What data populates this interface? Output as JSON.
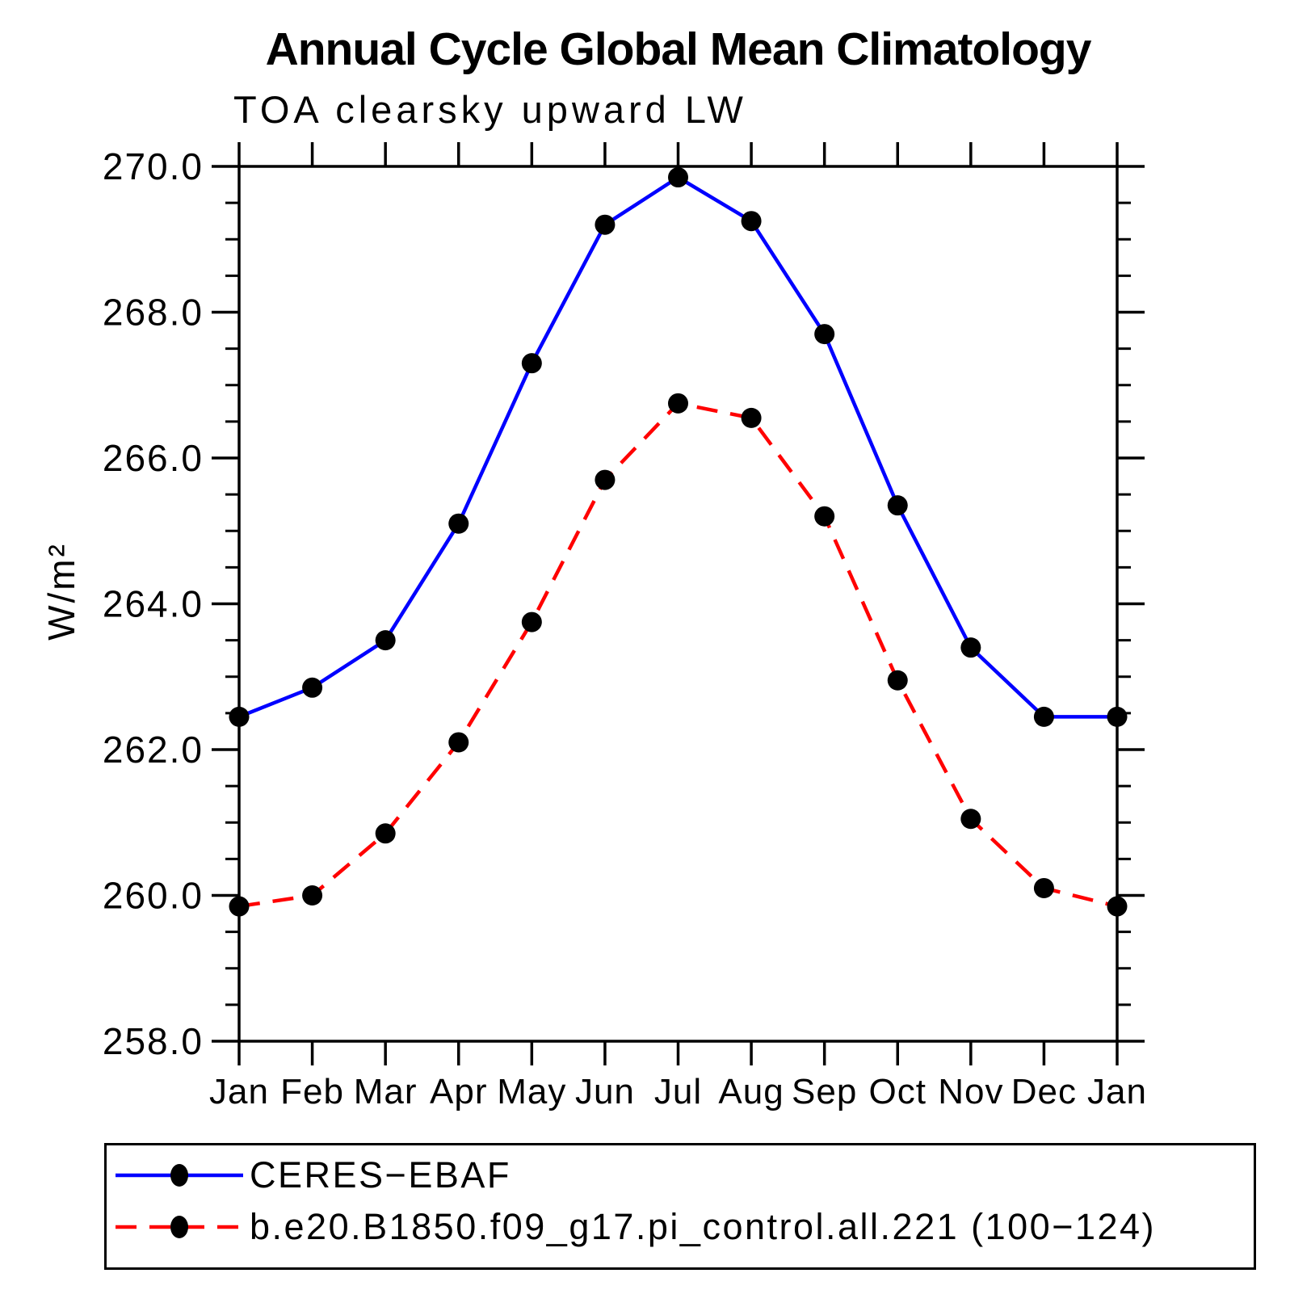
{
  "window": {
    "background": "#ffffff",
    "axis_color": "#000000"
  },
  "chart_data": {
    "type": "line",
    "title": "Annual Cycle Global Mean Climatology",
    "subtitle": "TOA clearsky upward LW",
    "ylabel": "W/m²",
    "xlabel": "",
    "x_categories": [
      "Jan",
      "Feb",
      "Mar",
      "Apr",
      "May",
      "Jun",
      "Jul",
      "Aug",
      "Sep",
      "Oct",
      "Nov",
      "Dec",
      "Jan"
    ],
    "ylim": [
      258.0,
      270.0
    ],
    "ytick_major_interval": 2.0,
    "ytick_minor_interval": 0.5,
    "ytick_labels": [
      "258.0",
      "260.0",
      "262.0",
      "264.0",
      "266.0",
      "268.0",
      "270.0"
    ],
    "grid": false,
    "legend_position": "bottom-left",
    "series": [
      {
        "name": "CERES−EBAF",
        "color": "#0000ff",
        "line_style": "solid",
        "marker": "filled-circle",
        "marker_color": "#000000",
        "values": [
          262.45,
          262.85,
          263.5,
          265.1,
          267.3,
          269.2,
          269.85,
          269.25,
          267.7,
          265.35,
          263.4,
          262.45,
          262.45
        ]
      },
      {
        "name": "b.e20.B1850.f09_g17.pi_control.all.221 (100−124)",
        "color": "#ff0000",
        "line_style": "dashed",
        "marker": "filled-circle",
        "marker_color": "#000000",
        "values": [
          259.85,
          260.0,
          260.85,
          262.1,
          263.75,
          265.7,
          266.75,
          266.55,
          265.2,
          262.95,
          261.05,
          260.1,
          259.85
        ]
      }
    ]
  }
}
